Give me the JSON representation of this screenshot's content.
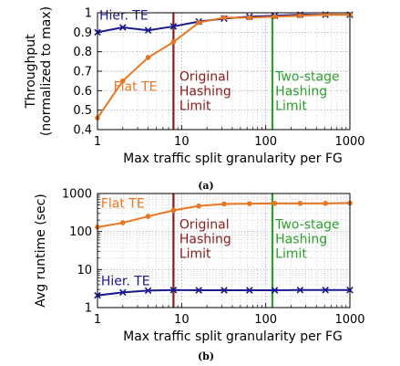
{
  "chart_data": [
    {
      "panel": "(a)",
      "type": "line",
      "xscale": "log",
      "xlim": [
        1,
        1000
      ],
      "ylim": [
        0.4,
        1.0
      ],
      "xlabel": "Max traffic split granularity per FG",
      "ylabel": [
        "Throughput",
        "(normalized to max)"
      ],
      "xticks": [
        1,
        10,
        100,
        1000
      ],
      "xtick_labels": [
        "1",
        "10",
        "100",
        "1000"
      ],
      "yticks": [
        0.4,
        0.5,
        0.6,
        0.7,
        0.8,
        0.9,
        1.0
      ],
      "ytick_labels": [
        "0.4",
        "0.5",
        "0.6",
        "0.7",
        "0.8",
        "0.9",
        "1"
      ],
      "grid": true,
      "series": [
        {
          "name": "Hier. TE",
          "color": "#1a1a8c",
          "marker": "x",
          "label_pos": [
            1.05,
            0.965
          ],
          "x": [
            1,
            2,
            4,
            8,
            16,
            32,
            64,
            128,
            256,
            512,
            1000
          ],
          "y": [
            0.9,
            0.925,
            0.91,
            0.93,
            0.955,
            0.97,
            0.98,
            0.985,
            0.99,
            0.99,
            0.99
          ]
        },
        {
          "name": "Flat TE",
          "color": "#e87722",
          "marker": "o",
          "label_pos": [
            1.55,
            0.6
          ],
          "x": [
            1,
            2,
            4,
            8,
            16,
            32,
            64,
            128,
            256,
            512,
            1000
          ],
          "y": [
            0.46,
            0.65,
            0.77,
            0.85,
            0.95,
            0.975,
            0.975,
            0.98,
            0.985,
            0.99,
            0.99
          ]
        }
      ],
      "vlines": [
        {
          "x": 8,
          "color": "#8b1a1a",
          "lines": [
            "Original",
            "Hashing",
            "Limit"
          ],
          "text_x": 9.4,
          "text_y": 0.65
        },
        {
          "x": 120,
          "color": "#2ca02c",
          "lines": [
            "Two-stage",
            "Hashing",
            "Limit"
          ],
          "text_x": 130,
          "text_y": 0.65
        }
      ]
    },
    {
      "panel": "(b)",
      "type": "line",
      "xscale": "log",
      "yscale": "log",
      "xlim": [
        1,
        1000
      ],
      "ylim": [
        1,
        1000
      ],
      "xlabel": "Max traffic split granularity per FG",
      "ylabel": [
        "Avg runtime (sec)"
      ],
      "xticks": [
        1,
        10,
        100,
        1000
      ],
      "xtick_labels": [
        "1",
        "10",
        "100",
        "1000"
      ],
      "yticks": [
        1,
        10,
        100,
        1000
      ],
      "ytick_labels": [
        "1",
        "10",
        "100",
        "1000"
      ],
      "grid": true,
      "series": [
        {
          "name": "Flat TE",
          "color": "#e87722",
          "marker": "o",
          "label_pos": [
            1.1,
            420
          ],
          "x": [
            1,
            2,
            4,
            8,
            16,
            32,
            64,
            128,
            256,
            512,
            1000
          ],
          "y": [
            130,
            170,
            250,
            360,
            470,
            530,
            540,
            550,
            550,
            550,
            560
          ]
        },
        {
          "name": "Hier. TE",
          "color": "#1a1a8c",
          "marker": "x",
          "label_pos": [
            1.1,
            3.9
          ],
          "x": [
            1,
            2,
            4,
            8,
            16,
            32,
            64,
            128,
            256,
            512,
            1000
          ],
          "y": [
            2.1,
            2.5,
            2.8,
            2.9,
            2.85,
            2.85,
            2.85,
            2.85,
            2.9,
            2.9,
            2.9
          ]
        }
      ],
      "vlines": [
        {
          "x": 8,
          "color": "#8b1a1a",
          "lines": [
            "Original",
            "Hashing",
            "Limit"
          ],
          "text_x": 9.4,
          "text_y": 120
        },
        {
          "x": 120,
          "color": "#2ca02c",
          "lines": [
            "Two-stage",
            "Hashing",
            "Limit"
          ],
          "text_x": 130,
          "text_y": 120
        }
      ]
    }
  ]
}
